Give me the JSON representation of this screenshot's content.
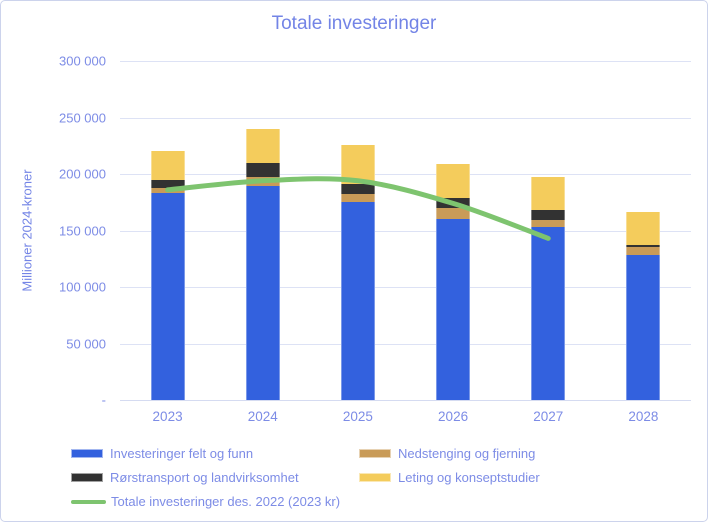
{
  "chart_data": {
    "type": "bar",
    "stacked": true,
    "title": "Totale investeringer",
    "ylabel": "Millioner 2024-kroner",
    "xlabel": "",
    "categories": [
      "2023",
      "2024",
      "2025",
      "2026",
      "2027",
      "2028"
    ],
    "series": [
      {
        "name": "Investeringer felt og funn",
        "color": "#3361de",
        "values": [
          183000,
          189000,
          175000,
          160000,
          153000,
          128000
        ]
      },
      {
        "name": "Nedstenging og fjerning",
        "color": "#c99b58",
        "values": [
          5000,
          8000,
          7000,
          10000,
          6000,
          7000
        ]
      },
      {
        "name": "Rørstransport og landvirksomhet",
        "color": "#323232",
        "values": [
          7000,
          13000,
          9000,
          9000,
          9000,
          2000
        ]
      },
      {
        "name": "Leting og konseptstudier",
        "color": "#f4cc5c",
        "values": [
          25000,
          30000,
          35000,
          30000,
          29000,
          29000
        ]
      }
    ],
    "line_series": {
      "name": "Totale investeringer des. 2022 (2023 kr)",
      "color": "#7ec46f",
      "values": [
        186000,
        194000,
        194000,
        174000,
        143000,
        null
      ]
    },
    "totals": [
      220000,
      240000,
      226000,
      209000,
      197000,
      166000
    ],
    "ylim": [
      0,
      300000
    ],
    "ytick_step": 50000,
    "ytick_labels": [
      "-",
      "50 000",
      "100 000",
      "150 000",
      "200 000",
      "250 000",
      "300 000"
    ],
    "grid": true,
    "legend_position": "bottom",
    "legend_columns": [
      [
        "s0",
        "s2",
        "line"
      ],
      [
        "s1",
        "s3"
      ]
    ],
    "text_color": "#7384e6"
  }
}
